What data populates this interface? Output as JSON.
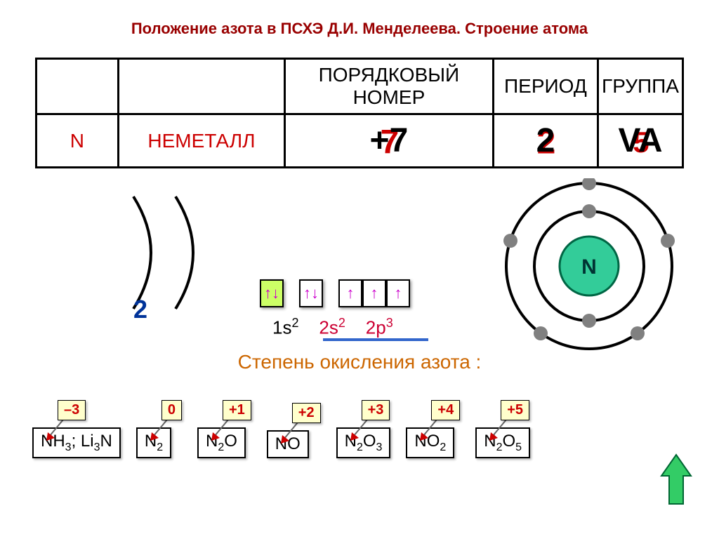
{
  "title": "Положение азота в ПСХЭ Д.И. Менделеева. Строение атома",
  "table": {
    "headers": {
      "ordinal": "ПОРЯДКОВЫЙ НОМЕР",
      "period": "ПЕРИОД",
      "group": "ГРУППА"
    },
    "symbol": "N",
    "type": "НЕМЕТАЛЛ",
    "ordinal_front": "+7",
    "ordinal_back": "7",
    "period_front": "2",
    "period_back": "2",
    "group_front": "VA",
    "group_back": "5"
  },
  "shells_label": "2",
  "orbitals": {
    "s1_arrows": "↑↓",
    "s2_arrows": "↑↓",
    "p_arrows": [
      "↑",
      "↑",
      "↑"
    ]
  },
  "econf": {
    "s1": "1s",
    "s1_sup": "2",
    "s2": "2s",
    "s2_sup": "2",
    "p2": "2p",
    "p2_sup": "3"
  },
  "atom": {
    "nucleus_label": "N",
    "nucleus_fill": "#33cc99",
    "ring_color": "#000000",
    "electron_color": "#808080",
    "inner_electrons_count": 2,
    "outer_electrons_count": 5
  },
  "oxidation_title": "Степень окисления азота :",
  "oxidation_states": [
    {
      "state": "–3",
      "formula_html": "NH<sub>3</sub>; Li<sub>3</sub>N"
    },
    {
      "state": "0",
      "formula_html": "N<sub>2</sub>"
    },
    {
      "state": "+1",
      "formula_html": "N<sub>2</sub>O"
    },
    {
      "state": "+2",
      "formula_html": "NO"
    },
    {
      "state": "+3",
      "formula_html": "N<sub>2</sub>O<sub>3</sub>"
    },
    {
      "state": "+4",
      "formula_html": "NO<sub>2</sub>"
    },
    {
      "state": "+5",
      "formula_html": "N<sub>2</sub>O<sub>5</sub>"
    }
  ],
  "colors": {
    "title": "#990000",
    "accent": "#cc0000",
    "arrow_stroke": "#666666",
    "arrow_fill": "#cc0000",
    "big_arrow_fill": "#33cc66",
    "big_arrow_stroke": "#006633"
  }
}
